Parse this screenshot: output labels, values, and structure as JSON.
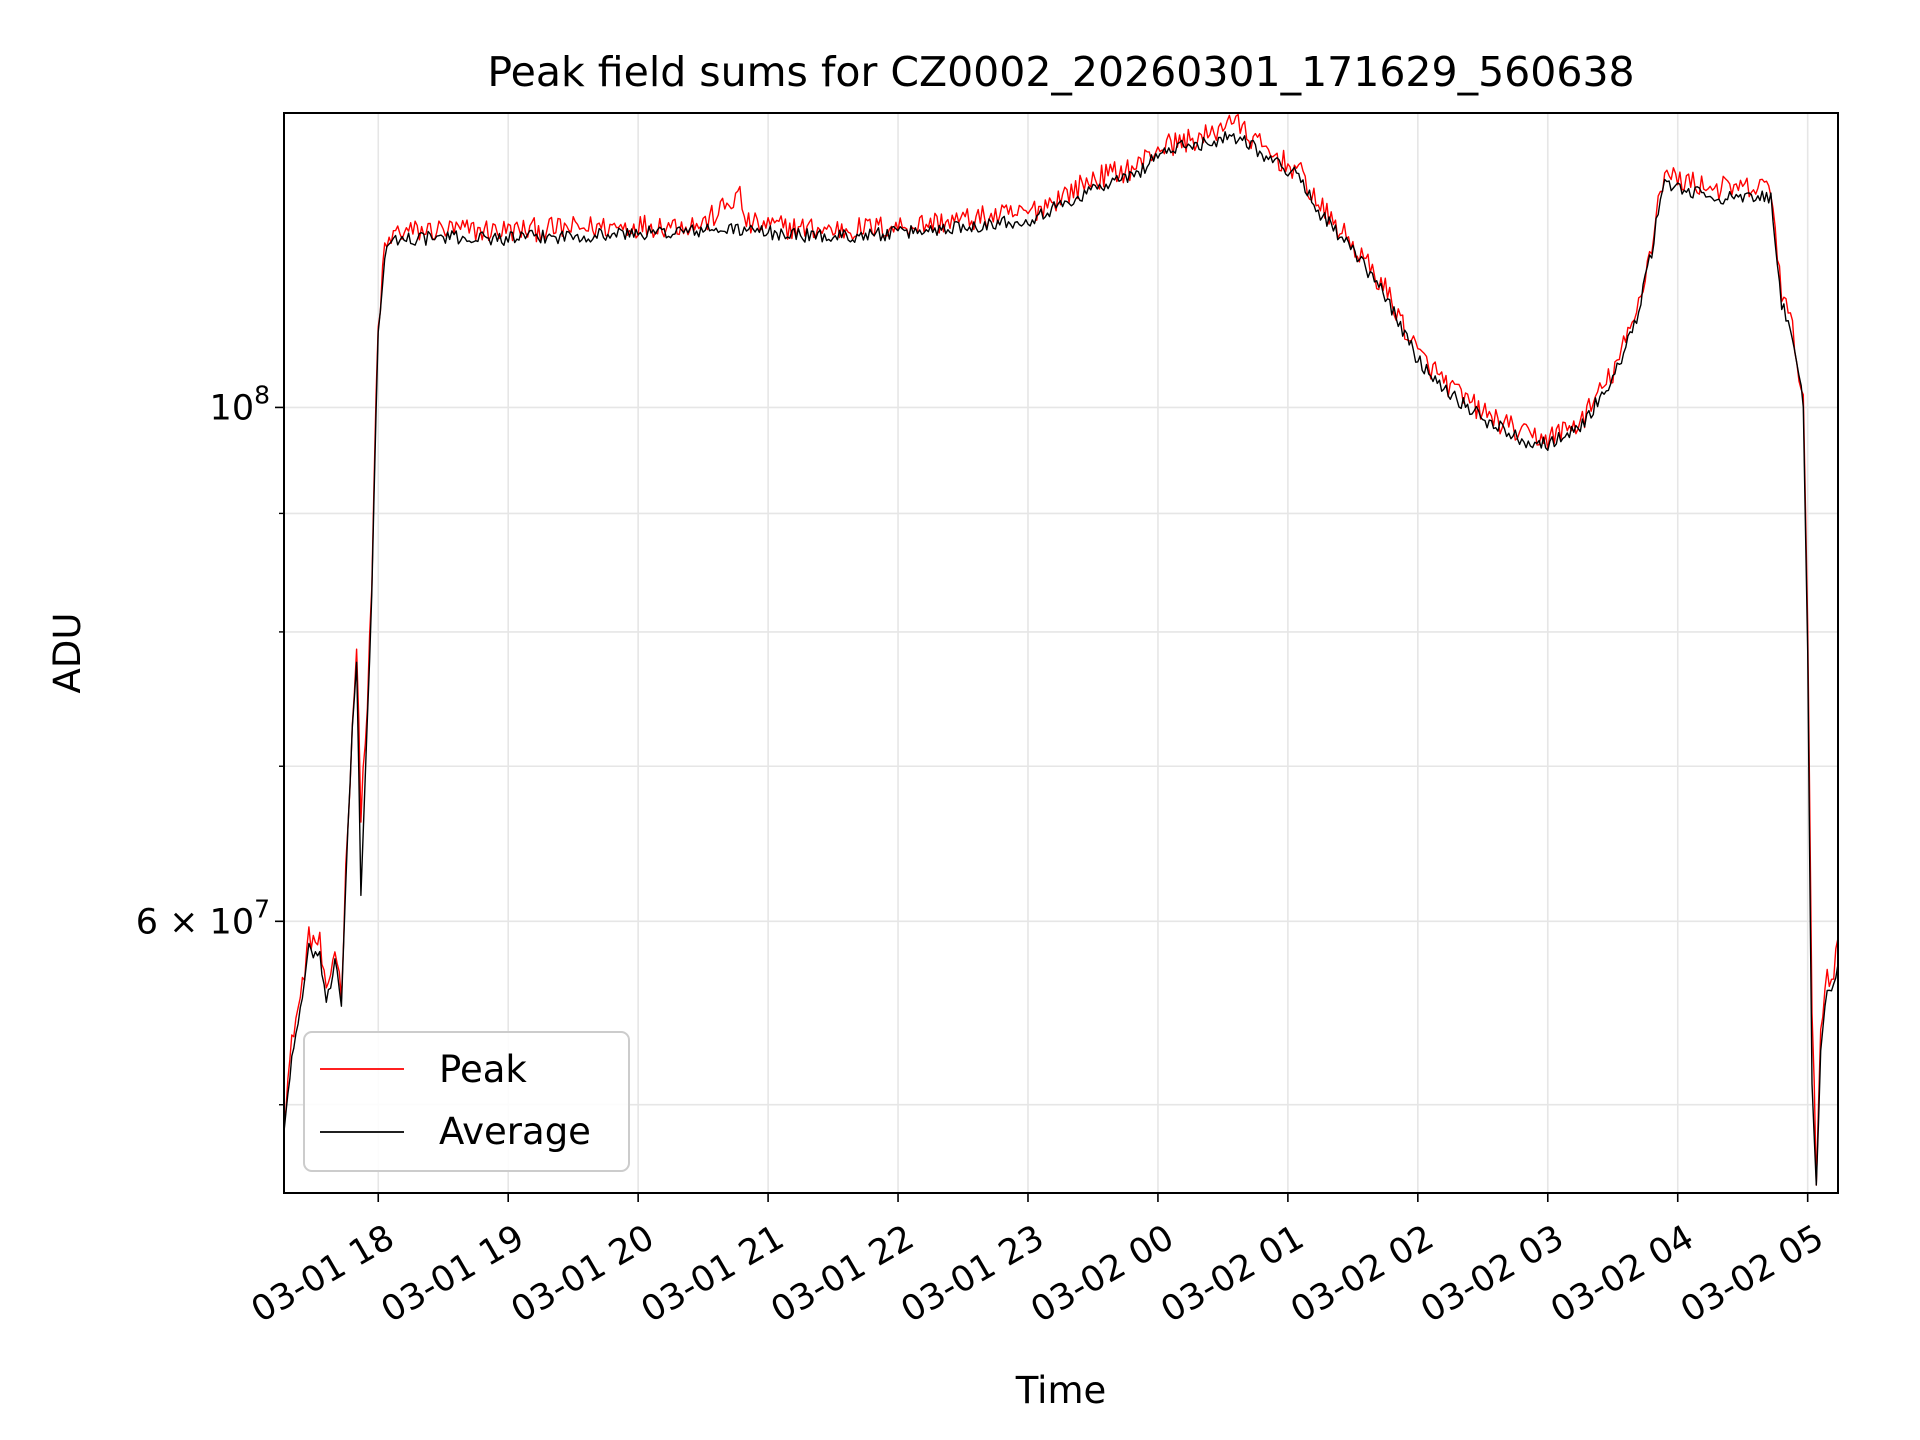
{
  "chart_data": {
    "type": "line",
    "title": "Peak field sums for CZ0002_20260301_171629_560638",
    "xlabel": "Time",
    "ylabel": "ADU",
    "x_range": [
      "2026-03-01 17:16:29",
      "2026-03-02 05:14:00"
    ],
    "ylim": [
      45800000,
      134000000
    ],
    "yscale": "log",
    "grid": true,
    "legend_position": "lower-left",
    "x_ticks": [
      "03-01 18",
      "03-01 19",
      "03-01 20",
      "03-01 21",
      "03-01 22",
      "03-01 23",
      "03-02 00",
      "03-02 01",
      "03-02 02",
      "03-02 03",
      "03-02 04",
      "03-02 05"
    ],
    "y_tick_labels": [
      {
        "value": 100000000,
        "base": "10",
        "exp": "8"
      },
      {
        "value": 60000000,
        "base": "6 × 10",
        "exp": "7"
      }
    ],
    "y_minor_ticks": [
      50000000,
      70000000,
      80000000,
      90000000
    ],
    "series": [
      {
        "name": "Peak",
        "color": "#ff0000",
        "points": [
          [
            "2026-03-01 17:16:29",
            49500000
          ],
          [
            "2026-03-01 17:21",
            54000000
          ],
          [
            "2026-03-01 17:24",
            55500000
          ],
          [
            "2026-03-01 17:28",
            59000000
          ],
          [
            "2026-03-01 17:33",
            58700000
          ],
          [
            "2026-03-01 17:36",
            55500000
          ],
          [
            "2026-03-01 17:40",
            58500000
          ],
          [
            "2026-03-01 17:43",
            56000000
          ],
          [
            "2026-03-01 17:45",
            63000000
          ],
          [
            "2026-03-01 17:48",
            73000000
          ],
          [
            "2026-03-01 17:50",
            78500000
          ],
          [
            "2026-03-01 17:52",
            67000000
          ],
          [
            "2026-03-01 17:55",
            74500000
          ],
          [
            "2026-03-01 17:57",
            83500000
          ],
          [
            "2026-03-01 17:59",
            101000000
          ],
          [
            "2026-03-01 18:00",
            108000000
          ],
          [
            "2026-03-01 18:03",
            117000000
          ],
          [
            "2026-03-01 18:08",
            119000000
          ],
          [
            "2026-03-01 18:30",
            119300000
          ],
          [
            "2026-03-01 19:00",
            119200000
          ],
          [
            "2026-03-01 19:30",
            119500000
          ],
          [
            "2026-03-01 20:00",
            119800000
          ],
          [
            "2026-03-01 20:30",
            120000000
          ],
          [
            "2026-03-01 20:47",
            123500000
          ],
          [
            "2026-03-01 20:50",
            120000000
          ],
          [
            "2026-03-01 21:15",
            119500000
          ],
          [
            "2026-03-01 21:30",
            119300000
          ],
          [
            "2026-03-01 22:00",
            119700000
          ],
          [
            "2026-03-01 22:30",
            120500000
          ],
          [
            "2026-03-01 23:00",
            121300000
          ],
          [
            "2026-03-01 23:20",
            124000000
          ],
          [
            "2026-03-01 23:30",
            125500000
          ],
          [
            "2026-03-01 23:50",
            127000000
          ],
          [
            "2026-03-02 00:00",
            129500000
          ],
          [
            "2026-03-02 00:15",
            130500000
          ],
          [
            "2026-03-02 00:25",
            131000000
          ],
          [
            "2026-03-02 00:33",
            133500000
          ],
          [
            "2026-03-02 00:40",
            131500000
          ],
          [
            "2026-03-02 00:50",
            129000000
          ],
          [
            "2026-03-02 01:05",
            126500000
          ],
          [
            "2026-03-02 01:15",
            122000000
          ],
          [
            "2026-03-02 01:30",
            117500000
          ],
          [
            "2026-03-02 01:45",
            112500000
          ],
          [
            "2026-03-02 02:00",
            105500000
          ],
          [
            "2026-03-02 02:15",
            102000000
          ],
          [
            "2026-03-02 02:30",
            99500000
          ],
          [
            "2026-03-02 02:50",
            97200000
          ],
          [
            "2026-03-02 03:00",
            97000000
          ],
          [
            "2026-03-02 03:15",
            98500000
          ],
          [
            "2026-03-02 03:30",
            103500000
          ],
          [
            "2026-03-02 03:40",
            109000000
          ],
          [
            "2026-03-02 03:48",
            117500000
          ],
          [
            "2026-03-02 03:52",
            124500000
          ],
          [
            "2026-03-02 03:54",
            126000000
          ],
          [
            "2026-03-02 04:00",
            125500000
          ],
          [
            "2026-03-02 04:15",
            124500000
          ],
          [
            "2026-03-02 04:30",
            124200000
          ],
          [
            "2026-03-02 04:43",
            124500000
          ],
          [
            "2026-03-02 04:48",
            112000000
          ],
          [
            "2026-03-02 04:53",
            108000000
          ],
          [
            "2026-03-02 04:58",
            101000000
          ],
          [
            "2026-03-02 05:00",
            80000000
          ],
          [
            "2026-03-02 05:02",
            55000000
          ],
          [
            "2026-03-02 05:04",
            46500000
          ],
          [
            "2026-03-02 05:06",
            54000000
          ],
          [
            "2026-03-02 05:09",
            57000000
          ],
          [
            "2026-03-02 05:11",
            56500000
          ],
          [
            "2026-03-02 05:14",
            59000000
          ]
        ]
      },
      {
        "name": "Average",
        "color": "#000000",
        "points": [
          [
            "2026-03-01 17:16:29",
            48800000
          ],
          [
            "2026-03-01 17:21",
            53200000
          ],
          [
            "2026-03-01 17:24",
            54800000
          ],
          [
            "2026-03-01 17:28",
            58300000
          ],
          [
            "2026-03-01 17:33",
            58000000
          ],
          [
            "2026-03-01 17:36",
            55000000
          ],
          [
            "2026-03-01 17:40",
            57800000
          ],
          [
            "2026-03-01 17:43",
            55400000
          ],
          [
            "2026-03-01 17:45",
            62300000
          ],
          [
            "2026-03-01 17:48",
            72300000
          ],
          [
            "2026-03-01 17:50",
            77800000
          ],
          [
            "2026-03-01 17:52",
            61500000
          ],
          [
            "2026-03-01 17:55",
            73800000
          ],
          [
            "2026-03-01 17:57",
            82800000
          ],
          [
            "2026-03-01 17:59",
            100200000
          ],
          [
            "2026-03-01 18:00",
            107200000
          ],
          [
            "2026-03-01 18:03",
            116300000
          ],
          [
            "2026-03-01 18:08",
            118200000
          ],
          [
            "2026-03-01 18:30",
            118400000
          ],
          [
            "2026-03-01 19:00",
            118300000
          ],
          [
            "2026-03-01 19:30",
            118600000
          ],
          [
            "2026-03-01 20:00",
            118900000
          ],
          [
            "2026-03-01 20:30",
            119200000
          ],
          [
            "2026-03-01 20:47",
            119400000
          ],
          [
            "2026-03-01 20:50",
            119200000
          ],
          [
            "2026-03-01 21:15",
            118700000
          ],
          [
            "2026-03-01 21:30",
            118500000
          ],
          [
            "2026-03-01 22:00",
            118900000
          ],
          [
            "2026-03-01 22:30",
            119700000
          ],
          [
            "2026-03-01 23:00",
            120500000
          ],
          [
            "2026-03-01 23:20",
            122800000
          ],
          [
            "2026-03-01 23:30",
            124300000
          ],
          [
            "2026-03-01 23:50",
            126000000
          ],
          [
            "2026-03-02 00:00",
            128700000
          ],
          [
            "2026-03-02 00:15",
            129800000
          ],
          [
            "2026-03-02 00:25",
            130200000
          ],
          [
            "2026-03-02 00:33",
            131000000
          ],
          [
            "2026-03-02 00:40",
            130600000
          ],
          [
            "2026-03-02 00:50",
            128300000
          ],
          [
            "2026-03-02 01:05",
            125800000
          ],
          [
            "2026-03-02 01:15",
            121300000
          ],
          [
            "2026-03-02 01:30",
            116800000
          ],
          [
            "2026-03-02 01:45",
            111800000
          ],
          [
            "2026-03-02 02:00",
            104800000
          ],
          [
            "2026-03-02 02:15",
            101400000
          ],
          [
            "2026-03-02 02:30",
            98900000
          ],
          [
            "2026-03-02 02:50",
            96700000
          ],
          [
            "2026-03-02 03:00",
            96500000
          ],
          [
            "2026-03-02 03:15",
            98000000
          ],
          [
            "2026-03-02 03:30",
            102900000
          ],
          [
            "2026-03-02 03:40",
            108300000
          ],
          [
            "2026-03-02 03:48",
            116700000
          ],
          [
            "2026-03-02 03:52",
            123600000
          ],
          [
            "2026-03-02 03:54",
            125000000
          ],
          [
            "2026-03-02 04:00",
            124300000
          ],
          [
            "2026-03-02 04:15",
            123300000
          ],
          [
            "2026-03-02 04:30",
            123000000
          ],
          [
            "2026-03-02 04:43",
            123300000
          ],
          [
            "2026-03-02 04:48",
            111000000
          ],
          [
            "2026-03-02 04:53",
            106500000
          ],
          [
            "2026-03-02 04:58",
            100500000
          ],
          [
            "2026-03-02 05:00",
            78500000
          ],
          [
            "2026-03-02 05:02",
            51000000
          ],
          [
            "2026-03-02 05:04",
            46000000
          ],
          [
            "2026-03-02 05:06",
            53000000
          ],
          [
            "2026-03-02 05:09",
            56300000
          ],
          [
            "2026-03-02 05:11",
            55800000
          ],
          [
            "2026-03-02 05:14",
            57500000
          ]
        ]
      }
    ]
  }
}
